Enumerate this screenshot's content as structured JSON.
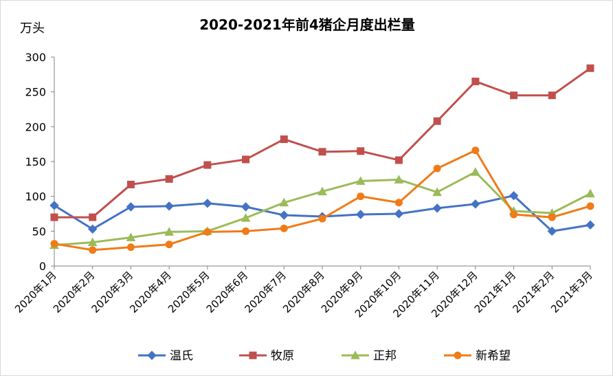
{
  "chart_data": {
    "type": "line",
    "title": "2020-2021年前4猪企月度出栏量",
    "ylabel": "万头",
    "xlabel": "",
    "ylim": [
      0,
      300
    ],
    "yticks": [
      0,
      50,
      100,
      150,
      200,
      250,
      300
    ],
    "grid": false,
    "legend_position": "bottom",
    "categories": [
      "2020年1月",
      "2020年2月",
      "2020年3月",
      "2020年4月",
      "2020年5月",
      "2020年6月",
      "2020年7月",
      "2020年8月",
      "2020年9月",
      "2020年10月",
      "2020年11月",
      "2020年12月",
      "2021年1月",
      "2021年2月",
      "2021年3月"
    ],
    "series": [
      {
        "name": "温氏",
        "color": "#4472c4",
        "marker": "diamond",
        "values": [
          87,
          53,
          85,
          86,
          90,
          85,
          73,
          71,
          74,
          75,
          83,
          89,
          101,
          50,
          59
        ]
      },
      {
        "name": "牧原",
        "color": "#c0504d",
        "marker": "square",
        "values": [
          70,
          70,
          117,
          125,
          145,
          153,
          182,
          164,
          165,
          152,
          208,
          265,
          245,
          245,
          284
        ]
      },
      {
        "name": "正邦",
        "color": "#9bbb59",
        "marker": "triangle",
        "values": [
          30,
          34,
          41,
          49,
          50,
          69,
          91,
          107,
          122,
          124,
          106,
          135,
          79,
          76,
          104
        ]
      },
      {
        "name": "新希望",
        "color": "#f07b17",
        "marker": "circle",
        "values": [
          32,
          23,
          27,
          31,
          49,
          50,
          54,
          68,
          100,
          91,
          140,
          166,
          74,
          70,
          86
        ]
      }
    ]
  }
}
